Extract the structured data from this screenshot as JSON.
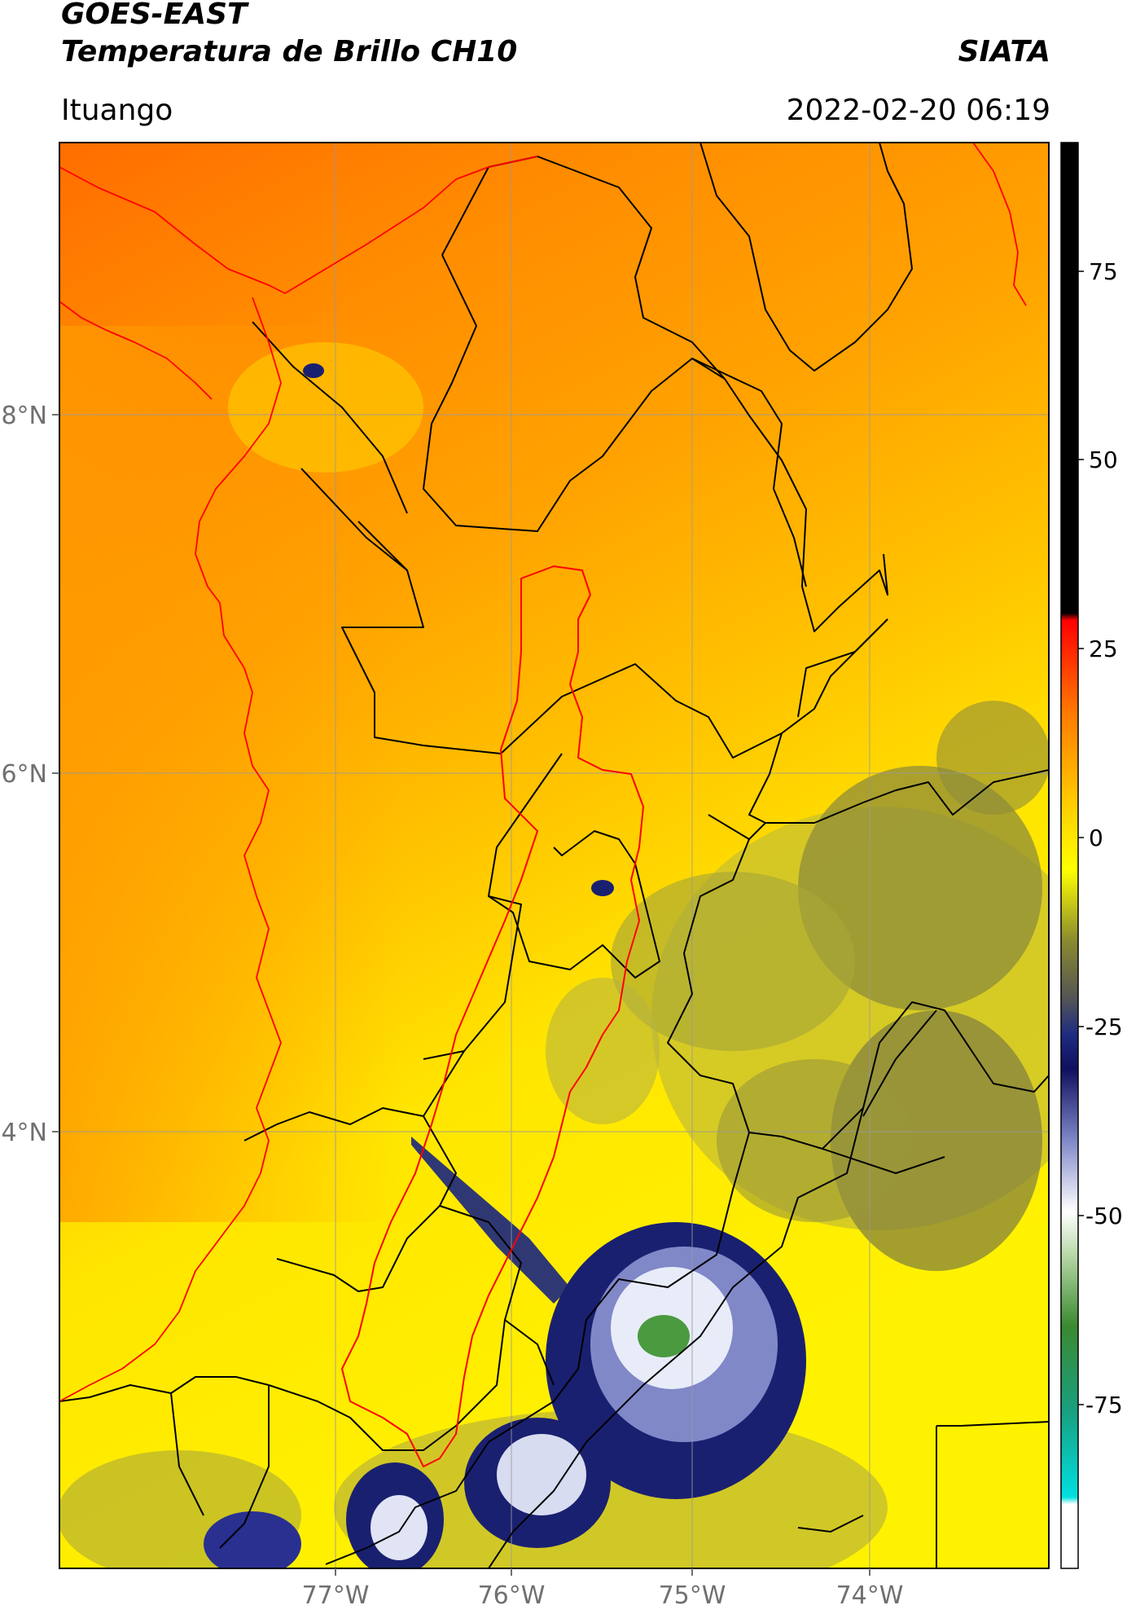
{
  "header": {
    "title_line1": "GOES-EAST",
    "title_line2": "Temperatura de Brillo CH10",
    "brand": "SIATA",
    "location": "Ituango",
    "timestamp": "2022-02-20 06:19"
  },
  "map": {
    "lon_range": [
      -78.55,
      -72.9
    ],
    "lat_range": [
      1.95,
      9.5
    ],
    "lon_ticks": [
      {
        "value": -77,
        "label": "77°W"
      },
      {
        "value": -76,
        "label": "76°W"
      },
      {
        "value": -75,
        "label": "75°W"
      },
      {
        "value": -74,
        "label": "74°W"
      }
    ],
    "lat_ticks": [
      {
        "value": 8,
        "label": "8°N"
      },
      {
        "value": 6,
        "label": "6°N"
      },
      {
        "value": 4,
        "label": "4°N"
      }
    ],
    "grid": true,
    "colors": {
      "frame": "#000000",
      "department_borders": "#000000",
      "watershed_outline": "#ff0000",
      "coastline": "#ff0000",
      "gridlines": "#9a9a9a"
    }
  },
  "colorbar": {
    "range": [
      -95,
      90
    ],
    "ticks": [
      {
        "value": 75,
        "label": "75"
      },
      {
        "value": 50,
        "label": "50"
      },
      {
        "value": 25,
        "label": "25"
      },
      {
        "value": 0,
        "label": "0"
      },
      {
        "value": -25,
        "label": "-25"
      },
      {
        "value": -50,
        "label": "-50"
      },
      {
        "value": -75,
        "label": "-75"
      }
    ]
  }
}
